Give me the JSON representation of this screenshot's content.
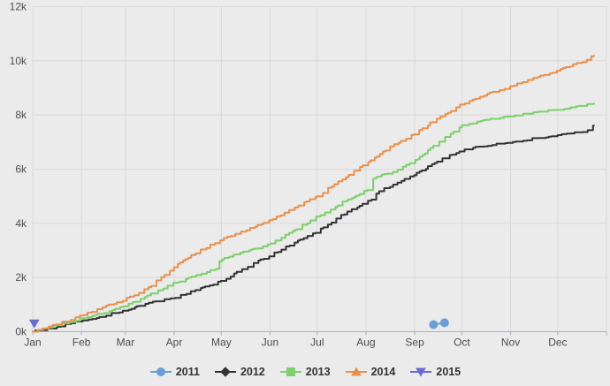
{
  "widget": {
    "background": "#ebebeb",
    "grid_color": "#d8d8d8",
    "axis_color": "#a8b0c4",
    "tick_label_color": "#4d4d4d",
    "legend_text_color": "#333333"
  },
  "chart_data": {
    "type": "line",
    "title": "",
    "xlabel": "",
    "ylabel": "",
    "x_unit": "day_of_year",
    "x_tick_labels": [
      "Jan",
      "Feb",
      "Mar",
      "Apr",
      "May",
      "Jun",
      "Jul",
      "Aug",
      "Sep",
      "Oct",
      "Nov",
      "Dec"
    ],
    "month_start_days": [
      0,
      31,
      59,
      90,
      120,
      151,
      181,
      212,
      243,
      273,
      304,
      334,
      365
    ],
    "y_tick_labels": [
      "0k",
      "2k",
      "4k",
      "6k",
      "8k",
      "10k",
      "12k"
    ],
    "y_tick_values": [
      0,
      2000,
      4000,
      6000,
      8000,
      10000,
      12000
    ],
    "ylim": [
      0,
      12000
    ],
    "xlim_days": [
      0,
      365
    ],
    "grid": true,
    "legend_position": "bottom",
    "line_style": "stepped-cumulative",
    "series": [
      {
        "name": "2011",
        "color": "#6a9ed8",
        "marker": "circle",
        "style": "points",
        "points": [
          [
            255,
            260
          ],
          [
            262,
            330
          ]
        ]
      },
      {
        "name": "2012",
        "color": "#333333",
        "marker": "diamond",
        "style": "stepped-line",
        "points": [
          [
            0,
            0
          ],
          [
            15,
            180
          ],
          [
            31,
            400
          ],
          [
            45,
            580
          ],
          [
            59,
            800
          ],
          [
            74,
            1050
          ],
          [
            90,
            1250
          ],
          [
            105,
            1550
          ],
          [
            120,
            1870
          ],
          [
            135,
            2350
          ],
          [
            151,
            2820
          ],
          [
            166,
            3270
          ],
          [
            181,
            3700
          ],
          [
            196,
            4280
          ],
          [
            212,
            4800
          ],
          [
            217,
            4900
          ],
          [
            219,
            5180
          ],
          [
            227,
            5350
          ],
          [
            243,
            5800
          ],
          [
            258,
            6300
          ],
          [
            273,
            6700
          ],
          [
            288,
            6870
          ],
          [
            304,
            7000
          ],
          [
            319,
            7130
          ],
          [
            334,
            7250
          ],
          [
            349,
            7380
          ],
          [
            354,
            7430
          ],
          [
            356,
            7580
          ],
          [
            357,
            7620
          ]
        ]
      },
      {
        "name": "2013",
        "color": "#7ecf6d",
        "marker": "square",
        "style": "stepped-line",
        "points": [
          [
            0,
            0
          ],
          [
            15,
            230
          ],
          [
            31,
            480
          ],
          [
            45,
            700
          ],
          [
            59,
            950
          ],
          [
            74,
            1350
          ],
          [
            90,
            1800
          ],
          [
            105,
            2080
          ],
          [
            117,
            2330
          ],
          [
            119,
            2630
          ],
          [
            120,
            2680
          ],
          [
            135,
            2950
          ],
          [
            151,
            3250
          ],
          [
            166,
            3720
          ],
          [
            181,
            4250
          ],
          [
            196,
            4750
          ],
          [
            212,
            5200
          ],
          [
            214,
            5250
          ],
          [
            216,
            5670
          ],
          [
            227,
            5850
          ],
          [
            243,
            6300
          ],
          [
            258,
            7000
          ],
          [
            273,
            7600
          ],
          [
            288,
            7800
          ],
          [
            304,
            7950
          ],
          [
            319,
            8080
          ],
          [
            334,
            8200
          ],
          [
            349,
            8330
          ],
          [
            357,
            8430
          ]
        ]
      },
      {
        "name": "2014",
        "color": "#e8914e",
        "marker": "triangle-up",
        "style": "stepped-line",
        "points": [
          [
            0,
            0
          ],
          [
            15,
            280
          ],
          [
            31,
            600
          ],
          [
            45,
            900
          ],
          [
            59,
            1200
          ],
          [
            74,
            1650
          ],
          [
            90,
            2400
          ],
          [
            105,
            2950
          ],
          [
            120,
            3400
          ],
          [
            135,
            3750
          ],
          [
            151,
            4100
          ],
          [
            166,
            4550
          ],
          [
            181,
            5000
          ],
          [
            196,
            5600
          ],
          [
            212,
            6200
          ],
          [
            227,
            6800
          ],
          [
            243,
            7300
          ],
          [
            258,
            7900
          ],
          [
            273,
            8400
          ],
          [
            288,
            8750
          ],
          [
            304,
            9050
          ],
          [
            319,
            9350
          ],
          [
            334,
            9650
          ],
          [
            349,
            9950
          ],
          [
            357,
            10180
          ]
        ]
      },
      {
        "name": "2015",
        "color": "#6b68ce",
        "marker": "triangle-down",
        "style": "points",
        "points": [
          [
            1,
            300
          ]
        ]
      }
    ]
  },
  "legend": {
    "items": [
      {
        "label": "2011"
      },
      {
        "label": "2012"
      },
      {
        "label": "2013"
      },
      {
        "label": "2014"
      },
      {
        "label": "2015"
      }
    ]
  }
}
